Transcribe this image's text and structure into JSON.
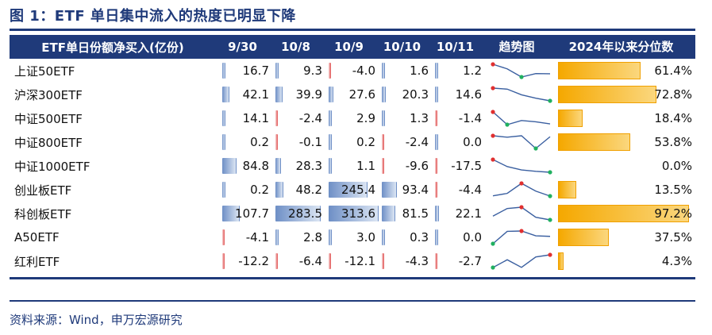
{
  "title": "图 1：ETF 单日集中流入的热度已明显下降",
  "source": "资料来源：Wind，申万宏源研究",
  "headers": [
    "ETF单日份额净买入(亿份)",
    "9/30",
    "10/8",
    "10/9",
    "10/10",
    "10/11",
    "趋势图",
    "2024年以来分位数"
  ],
  "rows": [
    {
      "name": "上证50ETF",
      "values": [
        16.7,
        9.3,
        -4.0,
        1.6,
        1.2
      ],
      "labels": [
        "16.7",
        "9.3",
        "-4.0",
        "1.6",
        "1.2"
      ],
      "pct": 61.4,
      "pct_label": "61.4%"
    },
    {
      "name": "沪深300ETF",
      "values": [
        42.1,
        39.9,
        27.6,
        20.3,
        14.6
      ],
      "labels": [
        "42.1",
        "39.9",
        "27.6",
        "20.3",
        "14.6"
      ],
      "pct": 72.8,
      "pct_label": "72.8%"
    },
    {
      "name": "中证500ETF",
      "values": [
        14.1,
        -2.4,
        2.9,
        1.3,
        -1.4
      ],
      "labels": [
        "14.1",
        "-2.4",
        "2.9",
        "1.3",
        "-1.4"
      ],
      "pct": 18.4,
      "pct_label": "18.4%"
    },
    {
      "name": "中证800ETF",
      "values": [
        0.2,
        -0.1,
        0.2,
        -2.4,
        0.0
      ],
      "labels": [
        "0.2",
        "-0.1",
        "0.2",
        "-2.4",
        "0.0"
      ],
      "pct": 53.8,
      "pct_label": "53.8%"
    },
    {
      "name": "中证1000ETF",
      "values": [
        84.8,
        28.3,
        1.1,
        -9.6,
        -17.5
      ],
      "labels": [
        "84.8",
        "28.3",
        "1.1",
        "-9.6",
        "-17.5"
      ],
      "pct": 0.0,
      "pct_label": "0.0%"
    },
    {
      "name": "创业板ETF",
      "values": [
        0.2,
        48.2,
        245.4,
        93.4,
        -4.4
      ],
      "labels": [
        "0.2",
        "48.2",
        "245.4",
        "93.4",
        "-4.4"
      ],
      "pct": 13.5,
      "pct_label": "13.5%"
    },
    {
      "name": "科创板ETF",
      "values": [
        107.7,
        283.5,
        313.6,
        81.5,
        22.1
      ],
      "labels": [
        "107.7",
        "283.5",
        "313.6",
        "81.5",
        "22.1"
      ],
      "pct": 97.2,
      "pct_label": "97.2%"
    },
    {
      "name": "A50ETF",
      "values": [
        -4.1,
        2.8,
        3.0,
        0.3,
        0.0
      ],
      "labels": [
        "-4.1",
        "2.8",
        "3.0",
        "0.3",
        "0.0"
      ],
      "pct": 37.5,
      "pct_label": "37.5%"
    },
    {
      "name": "红利ETF",
      "values": [
        -12.2,
        -6.4,
        -12.1,
        -4.3,
        -2.7
      ],
      "labels": [
        "-12.2",
        "-6.4",
        "-12.1",
        "-4.3",
        "-2.7"
      ],
      "pct": 4.3,
      "pct_label": "4.3%"
    }
  ],
  "colors": {
    "header_bg": "#1f3a7a",
    "pos_bar": "#6e8fc6",
    "neg_bar": "#e05050",
    "pct_bar": "#f5a800",
    "spark_line": "#3a5fa0",
    "spark_max": "#e03030",
    "spark_min": "#20b060"
  }
}
